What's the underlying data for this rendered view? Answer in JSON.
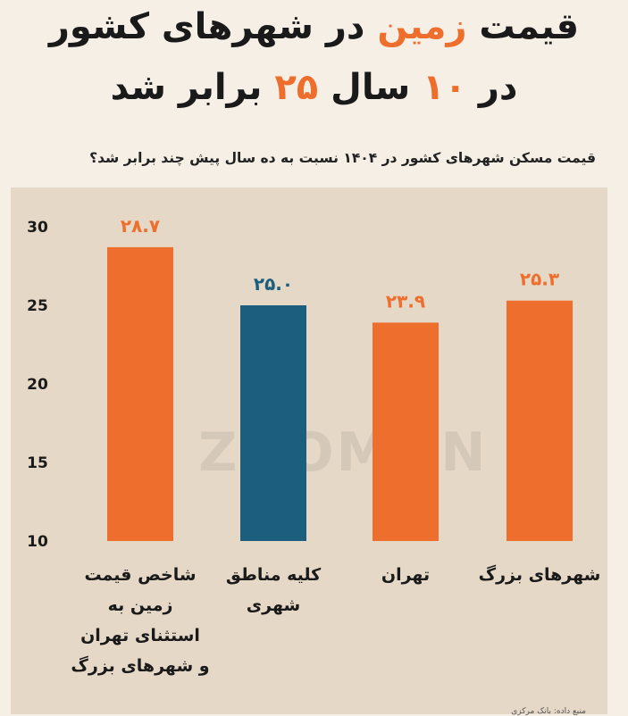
{
  "headline": {
    "line1_part1": "قیمت ",
    "line1_accent": "زمین",
    "line1_part2": " در شهرهای کشور",
    "line2_part1": "در ",
    "line2_accent1": "۱۰",
    "line2_part2": " سال ",
    "line2_accent2": "۲۵",
    "line2_part3": " برابر شد"
  },
  "watermark": "ZOOMON",
  "source": "منبع داده: بانک مرکزی",
  "colors": {
    "orange": "#ee6f2d",
    "blue": "#1b5e7e",
    "panel": "#e5d8c7"
  },
  "chart_data": {
    "type": "bar",
    "title": "قیمت مسکن شهرهای کشور در ۱۴۰۴ نسبت به ده سال پیش چند برابر شد؟",
    "xlabel": "",
    "ylabel": "",
    "ylim": [
      10,
      30
    ],
    "yticks": [
      "10",
      "15",
      "20",
      "25",
      "30"
    ],
    "categories": [
      [
        "شاخص قیمت",
        "زمین به",
        "استثنای تهران",
        "و شهرهای بزرگ"
      ],
      [
        "کلیه مناطق",
        "شهری"
      ],
      [
        "تهران"
      ],
      [
        "شهرهای بزرگ"
      ]
    ],
    "values": [
      28.7,
      25.0,
      23.9,
      25.3
    ],
    "value_labels": [
      "۲۸.۷",
      "۲۵.۰",
      "۲۳.۹",
      "۲۵.۳"
    ],
    "bar_colors": [
      "#ee6f2d",
      "#1b5e7e",
      "#ee6f2d",
      "#ee6f2d"
    ],
    "grid": false,
    "legend": "none"
  }
}
